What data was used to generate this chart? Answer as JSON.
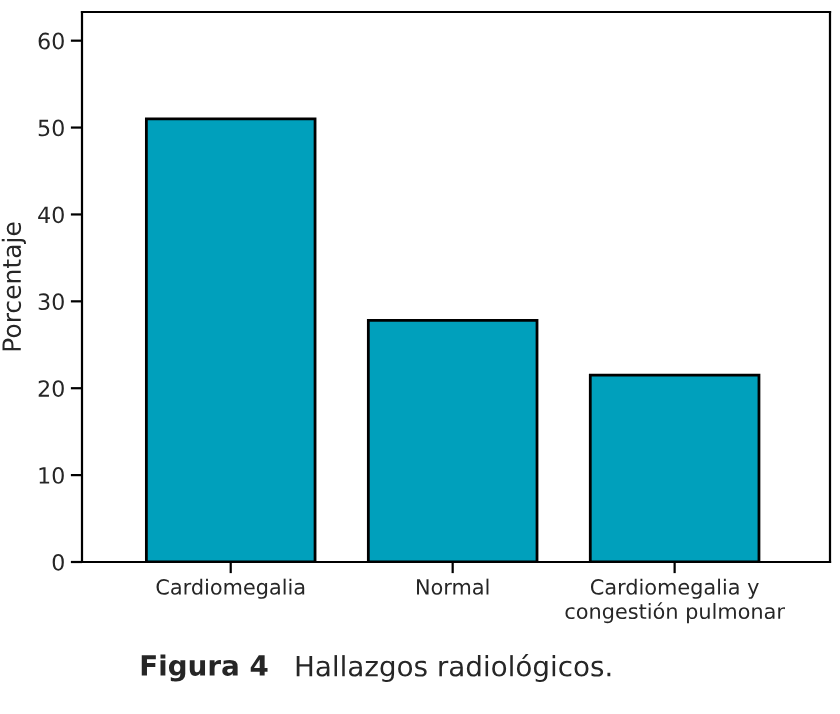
{
  "chart_data": {
    "type": "bar",
    "ylabel": "Porcentaje",
    "categories": [
      "Cardiomegalia",
      "Normal",
      "Cardiomegalia y\ncongestión pulmonar"
    ],
    "values": [
      51.0,
      27.8,
      21.5
    ],
    "color": "#00a0bc",
    "ylim": [
      0,
      63.3
    ],
    "yticks": [
      0,
      10,
      20,
      30,
      40,
      50,
      60
    ],
    "grid": false,
    "annotations": [
      "Figura 4",
      "Hallazgos radiológicos."
    ]
  }
}
